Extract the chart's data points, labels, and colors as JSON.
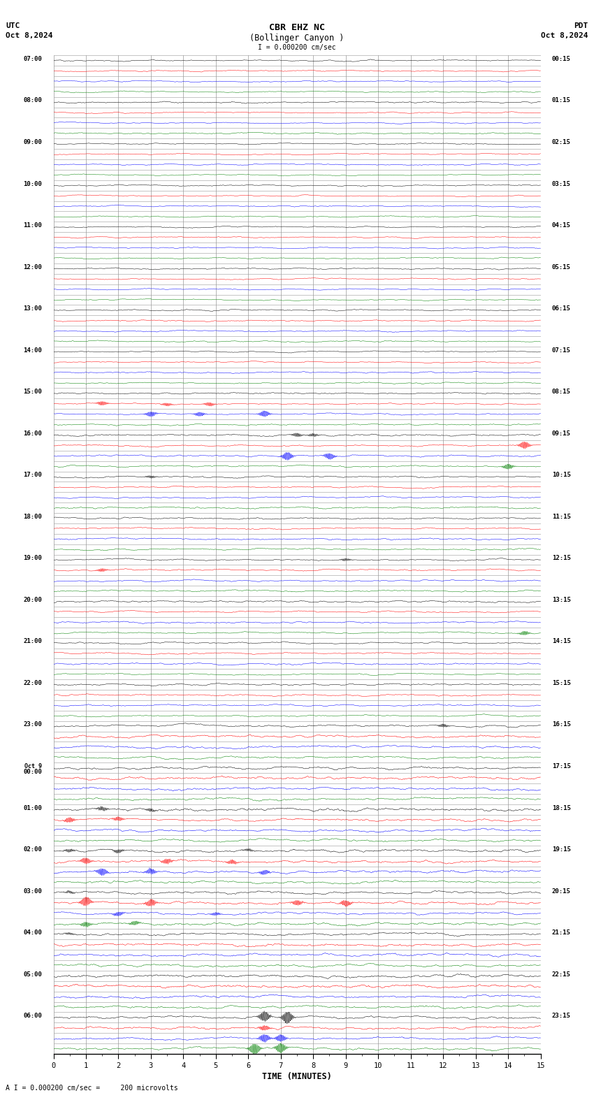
{
  "title_line1": "CBR EHZ NC",
  "title_line2": "(Bollinger Canyon )",
  "title_scale": "I = 0.000200 cm/sec",
  "utc_label": "UTC",
  "utc_date": "Oct 8,2024",
  "pdt_label": "PDT",
  "pdt_date": "Oct 8,2024",
  "bottom_label": "TIME (MINUTES)",
  "bottom_scale": "A I = 0.000200 cm/sec =     200 microvolts",
  "colors": [
    "black",
    "red",
    "blue",
    "green"
  ],
  "bg_color": "#ffffff",
  "n_rows": 96,
  "utc_row_labels": {
    "0": "07:00",
    "4": "08:00",
    "8": "09:00",
    "12": "10:00",
    "16": "11:00",
    "20": "12:00",
    "24": "13:00",
    "28": "14:00",
    "32": "15:00",
    "36": "16:00",
    "40": "17:00",
    "44": "18:00",
    "48": "19:00",
    "52": "20:00",
    "56": "21:00",
    "60": "22:00",
    "64": "23:00",
    "68": "Oct 9\n00:00",
    "72": "01:00",
    "76": "02:00",
    "80": "03:00",
    "84": "04:00",
    "88": "05:00",
    "92": "06:00"
  },
  "pdt_row_labels": {
    "0": "00:15",
    "4": "01:15",
    "8": "02:15",
    "12": "03:15",
    "16": "04:15",
    "20": "05:15",
    "24": "06:15",
    "28": "07:15",
    "32": "08:15",
    "36": "09:15",
    "40": "10:15",
    "44": "11:15",
    "48": "12:15",
    "52": "13:15",
    "56": "14:15",
    "60": "15:15",
    "64": "16:15",
    "68": "17:15",
    "72": "18:15",
    "76": "19:15",
    "80": "20:15",
    "84": "21:15",
    "88": "22:15",
    "92": "23:15"
  }
}
